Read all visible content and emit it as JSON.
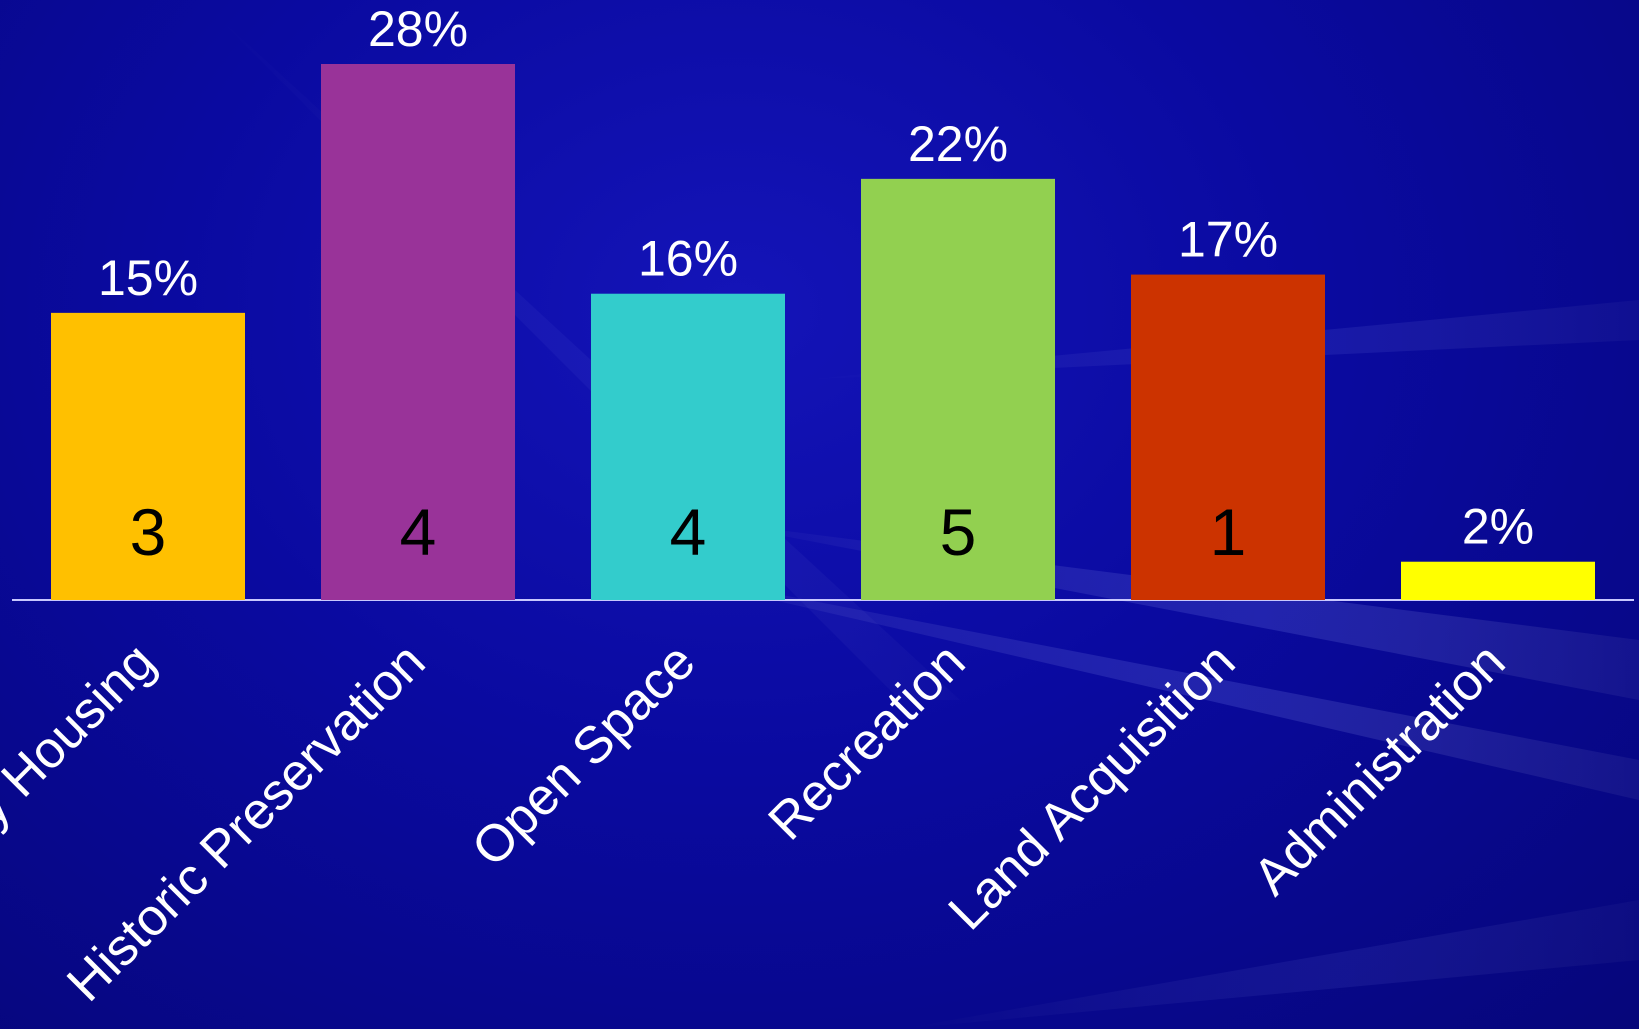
{
  "chart_data": {
    "type": "bar",
    "categories": [
      "Community Housing",
      "Historic Preservation",
      "Open Space",
      "Recreation",
      "Land Acquisition",
      "Administration"
    ],
    "values": [
      15,
      28,
      16,
      22,
      17,
      2
    ],
    "value_labels": [
      "15%",
      "28%",
      "16%",
      "22%",
      "17%",
      "2%"
    ],
    "counts": [
      "3",
      "4",
      "4",
      "5",
      "1",
      ""
    ],
    "colors": [
      "#FFC000",
      "#993399",
      "#33CCCC",
      "#92D050",
      "#CC3300",
      "#FFFF00"
    ],
    "ylim": [
      0,
      28
    ],
    "grid": false,
    "legend": "none",
    "title": "",
    "xlabel": "",
    "ylabel": ""
  }
}
